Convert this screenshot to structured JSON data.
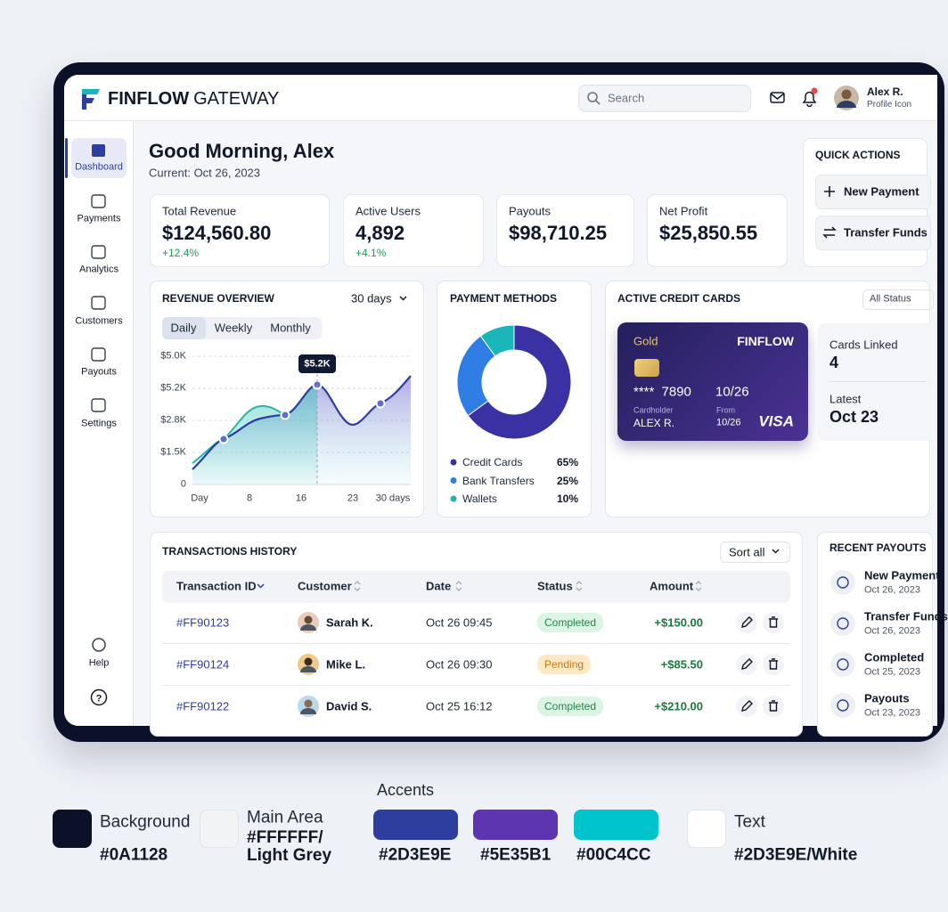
{
  "header": {
    "brand_bold": "FINFLOW",
    "brand_light": "GATEWAY",
    "search": "Search",
    "user_name": "Alex R.",
    "user_sub": "Profile Icon"
  },
  "sidebar": {
    "items": [
      "Dashboard",
      "Payments",
      "Analytics",
      "Customers",
      "Payouts",
      "Settings"
    ],
    "help": "Help"
  },
  "greeting": {
    "title": "Good Morning, Alex",
    "date": "Current: Oct 26, 2023"
  },
  "stats": [
    {
      "label": "Total Revenue",
      "value": "$124,560.80",
      "change": "+12.4%"
    },
    {
      "label": "Active Users",
      "value": "4,892",
      "change": "+4.1%"
    },
    {
      "label": "Payouts",
      "value": "$98,710.25"
    },
    {
      "label": "Net Profit",
      "value": "$25,850.55"
    }
  ],
  "quick_actions": {
    "title": "QUICK ACTIONS",
    "items": [
      "New Payment",
      "Transfer Funds"
    ]
  },
  "revenue": {
    "title": "REVENUE OVERVIEW",
    "range": "30 days",
    "tabs": [
      "Daily",
      "Weekly",
      "Monthly"
    ],
    "y_labels": [
      "$5.0K",
      "$5.2K",
      "$2.8K",
      "$1.5K",
      "0"
    ],
    "x_labels": [
      "Day",
      "8",
      "16",
      "23",
      "30 days"
    ],
    "tooltip": "$5.2K"
  },
  "chart_data": {
    "type": "donut",
    "title": "PAYMENT METHODS",
    "categories": [
      "Credit Cards",
      "Bank Transfers",
      "Wallets"
    ],
    "values": [
      65,
      25,
      10
    ],
    "value_labels": [
      "65%",
      "25%",
      "10%"
    ],
    "colors": [
      "#3a32a4",
      "#2f7ee6",
      "#19b5b8"
    ]
  },
  "credit_cards": {
    "title": "ACTIVE CREDIT CARDS",
    "filter": "All Status",
    "card": {
      "tier": "Gold",
      "brand": "FINFLOW",
      "number": "**** 7890",
      "expiry": "10/26",
      "holder_label": "Cardholder",
      "holder": "ALEX R.",
      "from_label": "From",
      "from": "10/26",
      "network": "VISA"
    },
    "linked_label": "Cards Linked",
    "linked": "4",
    "latest_label": "Latest",
    "latest": "Oct 23"
  },
  "transactions": {
    "title": "TRANSACTIONS HISTORY",
    "sort": "Sort all",
    "columns": [
      "Transaction ID",
      "Customer",
      "Date",
      "Status",
      "Amount"
    ],
    "rows": [
      {
        "id": "#FF90123",
        "customer": "Sarah K.",
        "date": "Oct 26 09:45",
        "status": "Completed",
        "status_bg": "#dcf4e4",
        "status_fg": "#1e8a4a",
        "amount": "+$150.00"
      },
      {
        "id": "#FF90124",
        "customer": "Mike L.",
        "date": "Oct 26 09:30",
        "status": "Pending",
        "status_bg": "#fde8c6",
        "status_fg": "#c67a0c",
        "amount": "+$85.50"
      },
      {
        "id": "#FF90122",
        "customer": "David S.",
        "date": "Oct 25 16:12",
        "status": "Completed",
        "status_bg": "#dcf4e4",
        "status_fg": "#1e8a4a",
        "amount": "+$210.00"
      }
    ]
  },
  "recent_payouts": {
    "title": "RECENT PAYOUTS",
    "items": [
      {
        "name": "New Payment",
        "date": "Oct 26, 2023"
      },
      {
        "name": "Transfer Funds",
        "date": "Oct 26, 2023"
      },
      {
        "name": "Completed",
        "date": "Oct 25, 2023"
      },
      {
        "name": "Payouts",
        "date": "Oct 23, 2023"
      }
    ]
  },
  "palette": {
    "title": "Accents",
    "swatches": [
      {
        "name": "Background",
        "code": "#0A1128",
        "color": "#0a1128"
      },
      {
        "name": "Main Area",
        "code": "#FFFFFF/ Light Grey",
        "color": "#f2f3f5"
      },
      {
        "code": "#2D3E9E",
        "color": "#2d3e9e"
      },
      {
        "code": "#5E35B1",
        "color": "#5e35b1"
      },
      {
        "code": "#00C4CC",
        "color": "#00c4cc"
      },
      {
        "name": "Text",
        "code": "#2D3E9E/White",
        "color": "#ffffff"
      }
    ]
  }
}
